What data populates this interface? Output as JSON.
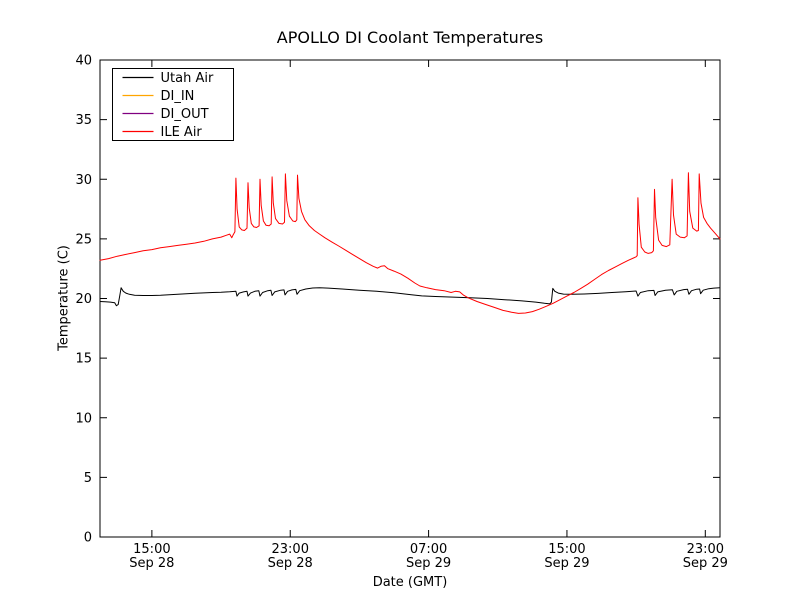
{
  "chart_data": {
    "type": "line",
    "title": "APOLLO DI Coolant Temperatures",
    "xlabel": "Date (GMT)",
    "ylabel": "Temperature (C)",
    "ylim": [
      0,
      40
    ],
    "yticks": [
      0,
      5,
      10,
      15,
      20,
      25,
      30,
      35,
      40
    ],
    "xlim_hours": [
      0,
      35.85
    ],
    "x_unit": "hours since Sep 28 12:00 GMT",
    "xticks": [
      {
        "h": 3,
        "time": "15:00",
        "date": "Sep 28"
      },
      {
        "h": 11,
        "time": "23:00",
        "date": "Sep 28"
      },
      {
        "h": 19,
        "time": "07:00",
        "date": "Sep 29"
      },
      {
        "h": 27,
        "time": "15:00",
        "date": "Sep 29"
      },
      {
        "h": 35,
        "time": "23:00",
        "date": "Sep 29"
      }
    ],
    "grid": false,
    "legend_position": "upper left",
    "series": [
      {
        "name": "Utah Air",
        "color": "#000000",
        "points": [
          [
            0,
            19.75
          ],
          [
            0.3,
            19.72
          ],
          [
            0.6,
            19.7
          ],
          [
            0.85,
            19.65
          ],
          [
            0.95,
            19.4
          ],
          [
            1.05,
            19.5
          ],
          [
            1.15,
            20.3
          ],
          [
            1.22,
            20.9
          ],
          [
            1.35,
            20.6
          ],
          [
            1.5,
            20.45
          ],
          [
            1.7,
            20.35
          ],
          [
            2.0,
            20.28
          ],
          [
            2.5,
            20.25
          ],
          [
            3.0,
            20.25
          ],
          [
            3.5,
            20.28
          ],
          [
            4.0,
            20.32
          ],
          [
            4.5,
            20.36
          ],
          [
            5.0,
            20.4
          ],
          [
            5.5,
            20.44
          ],
          [
            6.0,
            20.47
          ],
          [
            6.5,
            20.5
          ],
          [
            7.0,
            20.52
          ],
          [
            7.5,
            20.56
          ],
          [
            7.86,
            20.6
          ],
          [
            7.92,
            20.2
          ],
          [
            8.05,
            20.45
          ],
          [
            8.3,
            20.55
          ],
          [
            8.5,
            20.6
          ],
          [
            8.56,
            20.2
          ],
          [
            8.7,
            20.45
          ],
          [
            8.95,
            20.6
          ],
          [
            9.18,
            20.65
          ],
          [
            9.25,
            20.2
          ],
          [
            9.4,
            20.5
          ],
          [
            9.7,
            20.65
          ],
          [
            9.88,
            20.7
          ],
          [
            9.95,
            20.25
          ],
          [
            10.1,
            20.55
          ],
          [
            10.45,
            20.7
          ],
          [
            10.64,
            20.72
          ],
          [
            10.7,
            20.3
          ],
          [
            10.85,
            20.6
          ],
          [
            11.1,
            20.72
          ],
          [
            11.32,
            20.76
          ],
          [
            11.39,
            20.35
          ],
          [
            11.55,
            20.65
          ],
          [
            11.9,
            20.8
          ],
          [
            12.3,
            20.88
          ],
          [
            12.7,
            20.9
          ],
          [
            13.2,
            20.87
          ],
          [
            14.0,
            20.8
          ],
          [
            15.0,
            20.7
          ],
          [
            16.0,
            20.6
          ],
          [
            17.0,
            20.48
          ],
          [
            18.0,
            20.32
          ],
          [
            18.6,
            20.22
          ],
          [
            19.4,
            20.17
          ],
          [
            20.4,
            20.12
          ],
          [
            21.4,
            20.07
          ],
          [
            22.4,
            20.0
          ],
          [
            23.4,
            19.9
          ],
          [
            24.4,
            19.8
          ],
          [
            25.2,
            19.7
          ],
          [
            25.7,
            19.6
          ],
          [
            26.0,
            19.55
          ],
          [
            26.1,
            19.7
          ],
          [
            26.18,
            20.85
          ],
          [
            26.3,
            20.6
          ],
          [
            26.5,
            20.45
          ],
          [
            26.8,
            20.37
          ],
          [
            27.3,
            20.35
          ],
          [
            28.0,
            20.38
          ],
          [
            28.8,
            20.43
          ],
          [
            29.6,
            20.5
          ],
          [
            30.4,
            20.57
          ],
          [
            31.0,
            20.63
          ],
          [
            31.1,
            20.2
          ],
          [
            31.25,
            20.5
          ],
          [
            31.7,
            20.65
          ],
          [
            32.03,
            20.68
          ],
          [
            32.1,
            20.25
          ],
          [
            32.25,
            20.55
          ],
          [
            32.7,
            20.7
          ],
          [
            33.1,
            20.73
          ],
          [
            33.2,
            20.3
          ],
          [
            33.35,
            20.6
          ],
          [
            33.75,
            20.75
          ],
          [
            33.97,
            20.78
          ],
          [
            34.05,
            20.35
          ],
          [
            34.2,
            20.65
          ],
          [
            34.5,
            20.78
          ],
          [
            34.67,
            20.8
          ],
          [
            34.73,
            20.4
          ],
          [
            34.88,
            20.7
          ],
          [
            35.2,
            20.82
          ],
          [
            35.5,
            20.87
          ],
          [
            35.85,
            20.9
          ]
        ]
      },
      {
        "name": "DI_IN",
        "color": "#ffa500",
        "points": []
      },
      {
        "name": "DI_OUT",
        "color": "#800080",
        "points": []
      },
      {
        "name": "ILE Air",
        "color": "#ff0000",
        "points": [
          [
            0,
            23.2
          ],
          [
            0.5,
            23.35
          ],
          [
            1.0,
            23.55
          ],
          [
            1.5,
            23.7
          ],
          [
            2.0,
            23.85
          ],
          [
            2.5,
            24.0
          ],
          [
            3.0,
            24.1
          ],
          [
            3.5,
            24.25
          ],
          [
            4.0,
            24.35
          ],
          [
            4.5,
            24.45
          ],
          [
            5.0,
            24.55
          ],
          [
            5.5,
            24.65
          ],
          [
            6.0,
            24.8
          ],
          [
            6.5,
            25.0
          ],
          [
            7.0,
            25.15
          ],
          [
            7.3,
            25.3
          ],
          [
            7.5,
            25.4
          ],
          [
            7.62,
            25.1
          ],
          [
            7.7,
            25.35
          ],
          [
            7.8,
            25.6
          ],
          [
            7.86,
            30.1
          ],
          [
            7.93,
            27.5
          ],
          [
            8.05,
            26.0
          ],
          [
            8.2,
            25.75
          ],
          [
            8.35,
            25.7
          ],
          [
            8.5,
            25.9
          ],
          [
            8.56,
            29.7
          ],
          [
            8.63,
            27.6
          ],
          [
            8.75,
            26.3
          ],
          [
            8.9,
            26.0
          ],
          [
            9.05,
            25.95
          ],
          [
            9.2,
            26.1
          ],
          [
            9.25,
            30.0
          ],
          [
            9.32,
            27.8
          ],
          [
            9.45,
            26.5
          ],
          [
            9.6,
            26.15
          ],
          [
            9.78,
            26.1
          ],
          [
            9.9,
            26.25
          ],
          [
            9.95,
            30.2
          ],
          [
            10.02,
            28.0
          ],
          [
            10.15,
            26.7
          ],
          [
            10.35,
            26.3
          ],
          [
            10.55,
            26.25
          ],
          [
            10.67,
            26.4
          ],
          [
            10.72,
            30.45
          ],
          [
            10.8,
            28.2
          ],
          [
            10.95,
            26.9
          ],
          [
            11.15,
            26.5
          ],
          [
            11.3,
            26.45
          ],
          [
            11.38,
            26.6
          ],
          [
            11.42,
            30.35
          ],
          [
            11.5,
            28.4
          ],
          [
            11.65,
            27.3
          ],
          [
            11.85,
            26.6
          ],
          [
            12.1,
            26.1
          ],
          [
            12.4,
            25.7
          ],
          [
            12.7,
            25.4
          ],
          [
            13.0,
            25.1
          ],
          [
            13.4,
            24.75
          ],
          [
            13.8,
            24.4
          ],
          [
            14.2,
            24.05
          ],
          [
            14.6,
            23.7
          ],
          [
            15.0,
            23.35
          ],
          [
            15.4,
            23.0
          ],
          [
            15.8,
            22.7
          ],
          [
            16.05,
            22.55
          ],
          [
            16.25,
            22.7
          ],
          [
            16.45,
            22.75
          ],
          [
            16.65,
            22.5
          ],
          [
            17.0,
            22.3
          ],
          [
            17.4,
            22.05
          ],
          [
            17.8,
            21.7
          ],
          [
            18.2,
            21.3
          ],
          [
            18.5,
            21.05
          ],
          [
            18.9,
            20.9
          ],
          [
            19.4,
            20.75
          ],
          [
            19.9,
            20.65
          ],
          [
            20.3,
            20.5
          ],
          [
            20.55,
            20.6
          ],
          [
            20.8,
            20.55
          ],
          [
            21.0,
            20.3
          ],
          [
            21.3,
            20.05
          ],
          [
            21.8,
            19.75
          ],
          [
            22.3,
            19.5
          ],
          [
            22.8,
            19.25
          ],
          [
            23.3,
            19.0
          ],
          [
            23.8,
            18.85
          ],
          [
            24.2,
            18.75
          ],
          [
            24.6,
            18.78
          ],
          [
            25.0,
            18.9
          ],
          [
            25.4,
            19.1
          ],
          [
            25.8,
            19.35
          ],
          [
            26.2,
            19.6
          ],
          [
            26.6,
            19.9
          ],
          [
            27.0,
            20.2
          ],
          [
            27.4,
            20.5
          ],
          [
            27.8,
            20.85
          ],
          [
            28.2,
            21.2
          ],
          [
            28.6,
            21.6
          ],
          [
            29.0,
            22.0
          ],
          [
            29.4,
            22.35
          ],
          [
            29.8,
            22.65
          ],
          [
            30.2,
            22.95
          ],
          [
            30.55,
            23.2
          ],
          [
            30.85,
            23.4
          ],
          [
            31.0,
            23.5
          ],
          [
            31.06,
            23.6
          ],
          [
            31.1,
            28.45
          ],
          [
            31.17,
            26.2
          ],
          [
            31.3,
            24.3
          ],
          [
            31.5,
            23.9
          ],
          [
            31.7,
            23.78
          ],
          [
            31.9,
            23.85
          ],
          [
            32.0,
            24.0
          ],
          [
            32.06,
            29.15
          ],
          [
            32.13,
            26.8
          ],
          [
            32.3,
            24.9
          ],
          [
            32.5,
            24.45
          ],
          [
            32.75,
            24.35
          ],
          [
            32.95,
            24.5
          ],
          [
            33.08,
            30.0
          ],
          [
            33.16,
            27.0
          ],
          [
            33.32,
            25.4
          ],
          [
            33.55,
            25.15
          ],
          [
            33.8,
            25.1
          ],
          [
            33.95,
            25.25
          ],
          [
            34.02,
            30.55
          ],
          [
            34.1,
            27.3
          ],
          [
            34.28,
            25.9
          ],
          [
            34.5,
            25.65
          ],
          [
            34.6,
            25.7
          ],
          [
            34.65,
            30.45
          ],
          [
            34.75,
            28.0
          ],
          [
            34.9,
            26.8
          ],
          [
            35.1,
            26.3
          ],
          [
            35.3,
            25.9
          ],
          [
            35.55,
            25.5
          ],
          [
            35.85,
            25.0
          ]
        ]
      }
    ]
  }
}
